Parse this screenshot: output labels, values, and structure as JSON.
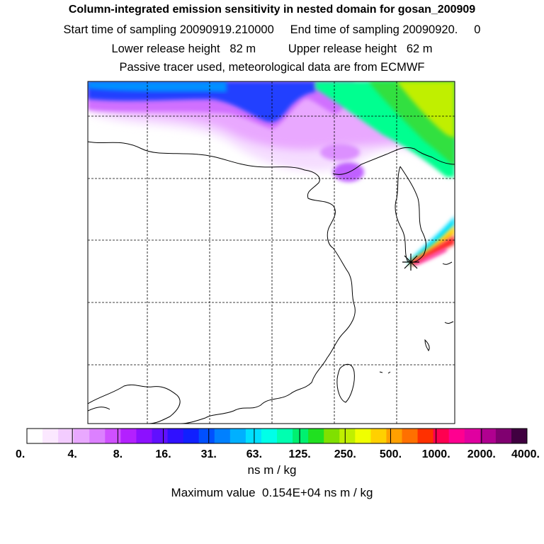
{
  "header": {
    "title": "Column-integrated emission sensitivity in nested domain for gosan_200909",
    "line2": "Start time of sampling 20090919.210000     End time of sampling 20090920.     0",
    "line3": "Lower release height   82 m          Upper release height   62 m",
    "line4": "Passive tracer used, meteorological data are from ECMWF"
  },
  "colorbar": {
    "colors": [
      "#ffffff",
      "#fbe8ff",
      "#f3ccff",
      "#e9a8ff",
      "#dc80ff",
      "#cf50ff",
      "#b320ff",
      "#8c10ff",
      "#6010ff",
      "#3010ff",
      "#1020ff",
      "#0050ff",
      "#0080ff",
      "#00b0ff",
      "#00e0ff",
      "#00ffe8",
      "#00ffb0",
      "#00f070",
      "#20e020",
      "#80e000",
      "#c0ef00",
      "#f0ff00",
      "#ffd000",
      "#ffa000",
      "#ff7000",
      "#ff3000",
      "#ff0050",
      "#ff0090",
      "#e000a0",
      "#b00090",
      "#800070",
      "#400040"
    ],
    "labels": [
      "0.",
      "4.",
      "8.",
      "16.",
      "31.",
      "63.",
      "125.",
      "250.",
      "500.",
      "1000.",
      "2000.",
      "4000."
    ],
    "units": "ns m / kg",
    "max_value_text": "Maximum value  0.154E+04 ns m / kg"
  },
  "map": {
    "receptor_marker": "star-marker",
    "grid": true
  }
}
